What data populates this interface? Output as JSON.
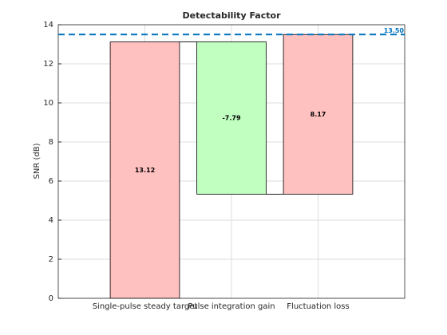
{
  "chart_data": {
    "type": "waterfall",
    "title": "Detectability Factor",
    "ylabel": "SNR (dB)",
    "categories": [
      "Single-pulse steady target",
      "Pulse integration gain",
      "Fluctuation loss"
    ],
    "values": [
      13.12,
      -7.79,
      8.17
    ],
    "positive_color": "#ffc0c0",
    "negative_color": "#c0ffc0",
    "reference_line": {
      "value": 13.5,
      "label": "13.50",
      "color": "#0072bd"
    },
    "xlim": [
      0,
      4
    ],
    "ylim": [
      0,
      14
    ],
    "yticks": [
      0,
      2,
      4,
      6,
      8,
      10,
      12,
      14
    ],
    "grid": true
  }
}
